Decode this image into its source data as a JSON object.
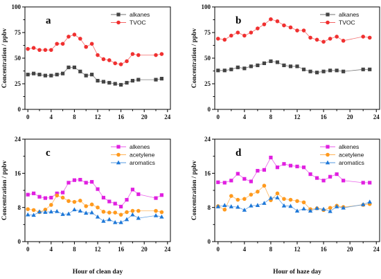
{
  "chart_data": [
    {
      "type": "line",
      "panel_label": "a",
      "xlabel": "",
      "ylabel": "Concentration / ppbv",
      "xlim": [
        -0.5,
        24.5
      ],
      "ylim": [
        0,
        100
      ],
      "xticks": [
        0,
        4,
        8,
        12,
        16,
        20,
        24
      ],
      "yticks": [
        0,
        25,
        50,
        75,
        100
      ],
      "legend_position": "top-right",
      "series": [
        {
          "name": "alkanes",
          "color": "#444444",
          "marker": "square",
          "x": [
            0,
            1,
            2,
            3,
            4,
            5,
            6,
            7,
            8,
            9,
            10,
            11,
            12,
            13,
            14,
            15,
            16,
            17,
            18,
            19,
            22,
            23
          ],
          "y": [
            34,
            35,
            34,
            33,
            33,
            34,
            35,
            41,
            41,
            37,
            33,
            34,
            28,
            27,
            26,
            25,
            24,
            26,
            28,
            29,
            29,
            30
          ]
        },
        {
          "name": "TVOC",
          "color": "#f03030",
          "marker": "circle",
          "x": [
            0,
            1,
            2,
            3,
            4,
            5,
            6,
            7,
            8,
            9,
            10,
            11,
            12,
            13,
            14,
            15,
            16,
            17,
            18,
            19,
            22,
            23
          ],
          "y": [
            59,
            60,
            58,
            58,
            58,
            64,
            64,
            71,
            73,
            69,
            61,
            64,
            53,
            49,
            48,
            45,
            44,
            47,
            54,
            53,
            53,
            54
          ]
        }
      ]
    },
    {
      "type": "line",
      "panel_label": "b",
      "xlabel": "",
      "ylabel": "Concentration / ppbv",
      "xlim": [
        -0.5,
        24.5
      ],
      "ylim": [
        0,
        100
      ],
      "xticks": [
        0,
        4,
        8,
        12,
        16,
        20,
        24
      ],
      "yticks": [
        0,
        25,
        50,
        75,
        100
      ],
      "legend_position": "top-right",
      "series": [
        {
          "name": "alkanes",
          "color": "#444444",
          "marker": "square",
          "x": [
            0,
            1,
            2,
            3,
            4,
            5,
            6,
            7,
            8,
            9,
            10,
            11,
            12,
            13,
            14,
            15,
            16,
            17,
            18,
            19,
            22,
            23
          ],
          "y": [
            38,
            38,
            39,
            41,
            40,
            42,
            43,
            45,
            47,
            46,
            43,
            42,
            42,
            39,
            37,
            36,
            37,
            38,
            38,
            37,
            39,
            39
          ]
        },
        {
          "name": "TVOC",
          "color": "#f03030",
          "marker": "circle",
          "x": [
            0,
            1,
            2,
            3,
            4,
            5,
            6,
            7,
            8,
            9,
            10,
            11,
            12,
            13,
            14,
            15,
            16,
            17,
            18,
            19,
            22,
            23
          ],
          "y": [
            69,
            68,
            72,
            75,
            72,
            75,
            79,
            83,
            88,
            86,
            82,
            80,
            77,
            77,
            70,
            68,
            66,
            69,
            71,
            67,
            71,
            70
          ]
        }
      ]
    },
    {
      "type": "line",
      "panel_label": "c",
      "xlabel": "Hour of clean day",
      "ylabel": "Concentration / ppbv",
      "xlim": [
        -0.5,
        24.5
      ],
      "ylim": [
        0,
        24
      ],
      "xticks": [
        0,
        4,
        8,
        12,
        16,
        20,
        24
      ],
      "yticks": [
        0,
        8,
        16,
        24
      ],
      "legend_position": "top-right",
      "series": [
        {
          "name": "alkenes",
          "color": "#e020e0",
          "marker": "square",
          "x": [
            0,
            1,
            2,
            3,
            4,
            5,
            6,
            7,
            8,
            9,
            10,
            11,
            12,
            13,
            14,
            15,
            16,
            17,
            18,
            19,
            22,
            23
          ],
          "y": [
            11.0,
            11.3,
            10.5,
            10.2,
            10.3,
            11.3,
            11.5,
            13.8,
            14.4,
            14.5,
            13.8,
            14.0,
            12.3,
            10.3,
            9.4,
            8.9,
            8.2,
            9.8,
            12.2,
            11.1,
            10.2,
            10.9
          ]
        },
        {
          "name": "acetylene",
          "color": "#ff9a1e",
          "marker": "circle",
          "x": [
            0,
            1,
            2,
            3,
            4,
            5,
            6,
            7,
            8,
            9,
            10,
            11,
            12,
            13,
            14,
            15,
            16,
            17,
            18,
            19,
            22,
            23
          ],
          "y": [
            7.6,
            7.4,
            6.9,
            7.5,
            8.6,
            10.8,
            10.3,
            9.5,
            9.3,
            9.6,
            8.3,
            8.7,
            8.0,
            7.0,
            6.8,
            6.8,
            6.3,
            6.9,
            7.2,
            7.2,
            7.2,
            6.9
          ]
        },
        {
          "name": "aromatics",
          "color": "#1e78d8",
          "marker": "triangle",
          "x": [
            0,
            1,
            2,
            3,
            4,
            5,
            6,
            7,
            8,
            9,
            10,
            11,
            12,
            13,
            14,
            15,
            16,
            17,
            18,
            19,
            22,
            23
          ],
          "y": [
            6.3,
            6.2,
            7.0,
            6.9,
            7.0,
            7.1,
            6.4,
            6.5,
            7.5,
            7.2,
            6.7,
            6.8,
            5.8,
            4.8,
            5.2,
            4.5,
            4.5,
            5.2,
            6.3,
            5.5,
            6.1,
            5.8
          ]
        }
      ]
    },
    {
      "type": "line",
      "panel_label": "d",
      "xlabel": "Hour of haze day",
      "ylabel": "Concentration / ppbv",
      "xlim": [
        -0.5,
        24.5
      ],
      "ylim": [
        0,
        24
      ],
      "xticks": [
        0,
        4,
        8,
        12,
        16,
        20,
        24
      ],
      "yticks": [
        0,
        8,
        16,
        24
      ],
      "legend_position": "top-right",
      "series": [
        {
          "name": "alkenes",
          "color": "#e020e0",
          "marker": "square",
          "x": [
            0,
            1,
            2,
            3,
            4,
            5,
            6,
            7,
            8,
            9,
            10,
            11,
            12,
            13,
            14,
            15,
            16,
            17,
            18,
            19,
            22,
            23
          ],
          "y": [
            13.9,
            13.8,
            14.3,
            15.9,
            14.7,
            14.1,
            16.6,
            16.8,
            19.7,
            17.4,
            18.2,
            17.8,
            17.6,
            17.4,
            15.8,
            14.9,
            14.3,
            15.2,
            15.8,
            14.3,
            13.8,
            13.8
          ]
        },
        {
          "name": "acetylene",
          "color": "#ff9a1e",
          "marker": "circle",
          "x": [
            0,
            1,
            2,
            3,
            4,
            5,
            6,
            7,
            8,
            9,
            10,
            11,
            12,
            13,
            14,
            15,
            16,
            17,
            18,
            19,
            22,
            23
          ],
          "y": [
            8.3,
            7.5,
            10.7,
            9.8,
            10.0,
            11.0,
            11.7,
            13.1,
            9.7,
            11.3,
            10.0,
            9.8,
            9.5,
            9.2,
            7.6,
            7.8,
            7.4,
            7.9,
            8.4,
            8.1,
            8.6,
            8.8
          ]
        },
        {
          "name": "aromatics",
          "color": "#1e78d8",
          "marker": "triangle",
          "x": [
            0,
            1,
            2,
            3,
            4,
            5,
            6,
            7,
            8,
            9,
            10,
            11,
            12,
            13,
            14,
            15,
            16,
            17,
            18,
            19,
            22,
            23
          ],
          "y": [
            8.2,
            8.5,
            8.2,
            8.1,
            7.4,
            8.4,
            8.5,
            9.0,
            10.2,
            10.3,
            8.4,
            8.3,
            7.2,
            7.7,
            7.2,
            7.8,
            7.6,
            7.1,
            8.2,
            7.9,
            8.7,
            9.3
          ]
        }
      ]
    }
  ]
}
